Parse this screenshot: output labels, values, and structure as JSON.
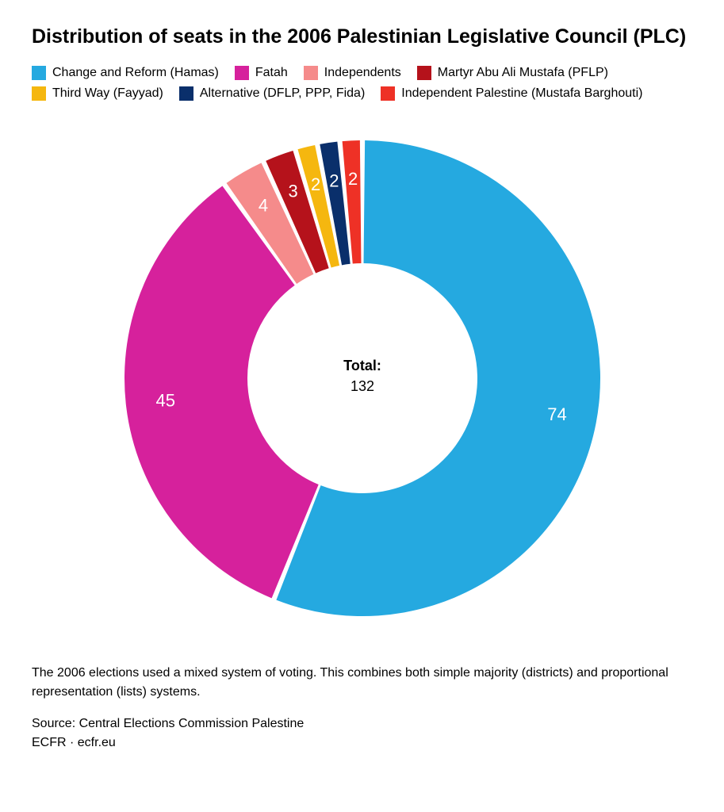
{
  "title": "Distribution of seats in the 2006 Palestinian Legislative Council (PLC)",
  "chart": {
    "type": "donut",
    "start_angle_deg": 0,
    "gap_deg": 1.2,
    "outer_radius": 300,
    "inner_radius": 145,
    "label_radius": 250,
    "background_color": "#ffffff",
    "center_label_title": "Total:",
    "center_label_value": "132",
    "center_title_fontsize": 18,
    "center_value_fontsize": 18,
    "slice_label_color": "#ffffff",
    "slice_label_fontsize": 22,
    "series": [
      {
        "label": "Change and Reform (Hamas)",
        "value": 74,
        "color": "#25a9e0",
        "display": "74"
      },
      {
        "label": "Fatah",
        "value": 45,
        "color": "#d6219c",
        "display": "45"
      },
      {
        "label": "Independents",
        "value": 4,
        "color": "#f58b8b",
        "display": "4"
      },
      {
        "label": "Martyr Abu Ali Mustafa (PFLP)",
        "value": 3,
        "color": "#b5121b",
        "display": "3"
      },
      {
        "label": "Third Way (Fayyad)",
        "value": 2,
        "color": "#f5b70f",
        "display": "2"
      },
      {
        "label": "Alternative (DFLP, PPP, Fida)",
        "value": 2,
        "color": "#0a2f6b",
        "display": "2"
      },
      {
        "label": "Independent Palestine (Mustafa Barghouti)",
        "value": 2,
        "color": "#ee3126",
        "display": "2"
      }
    ]
  },
  "footnote": "The 2006 elections used a mixed system of voting. This combines both simple majority (districts) and proportional representation (lists) systems.",
  "source_line1": "Source: Central Elections Commission Palestine",
  "source_line2": "ECFR · ecfr.eu"
}
